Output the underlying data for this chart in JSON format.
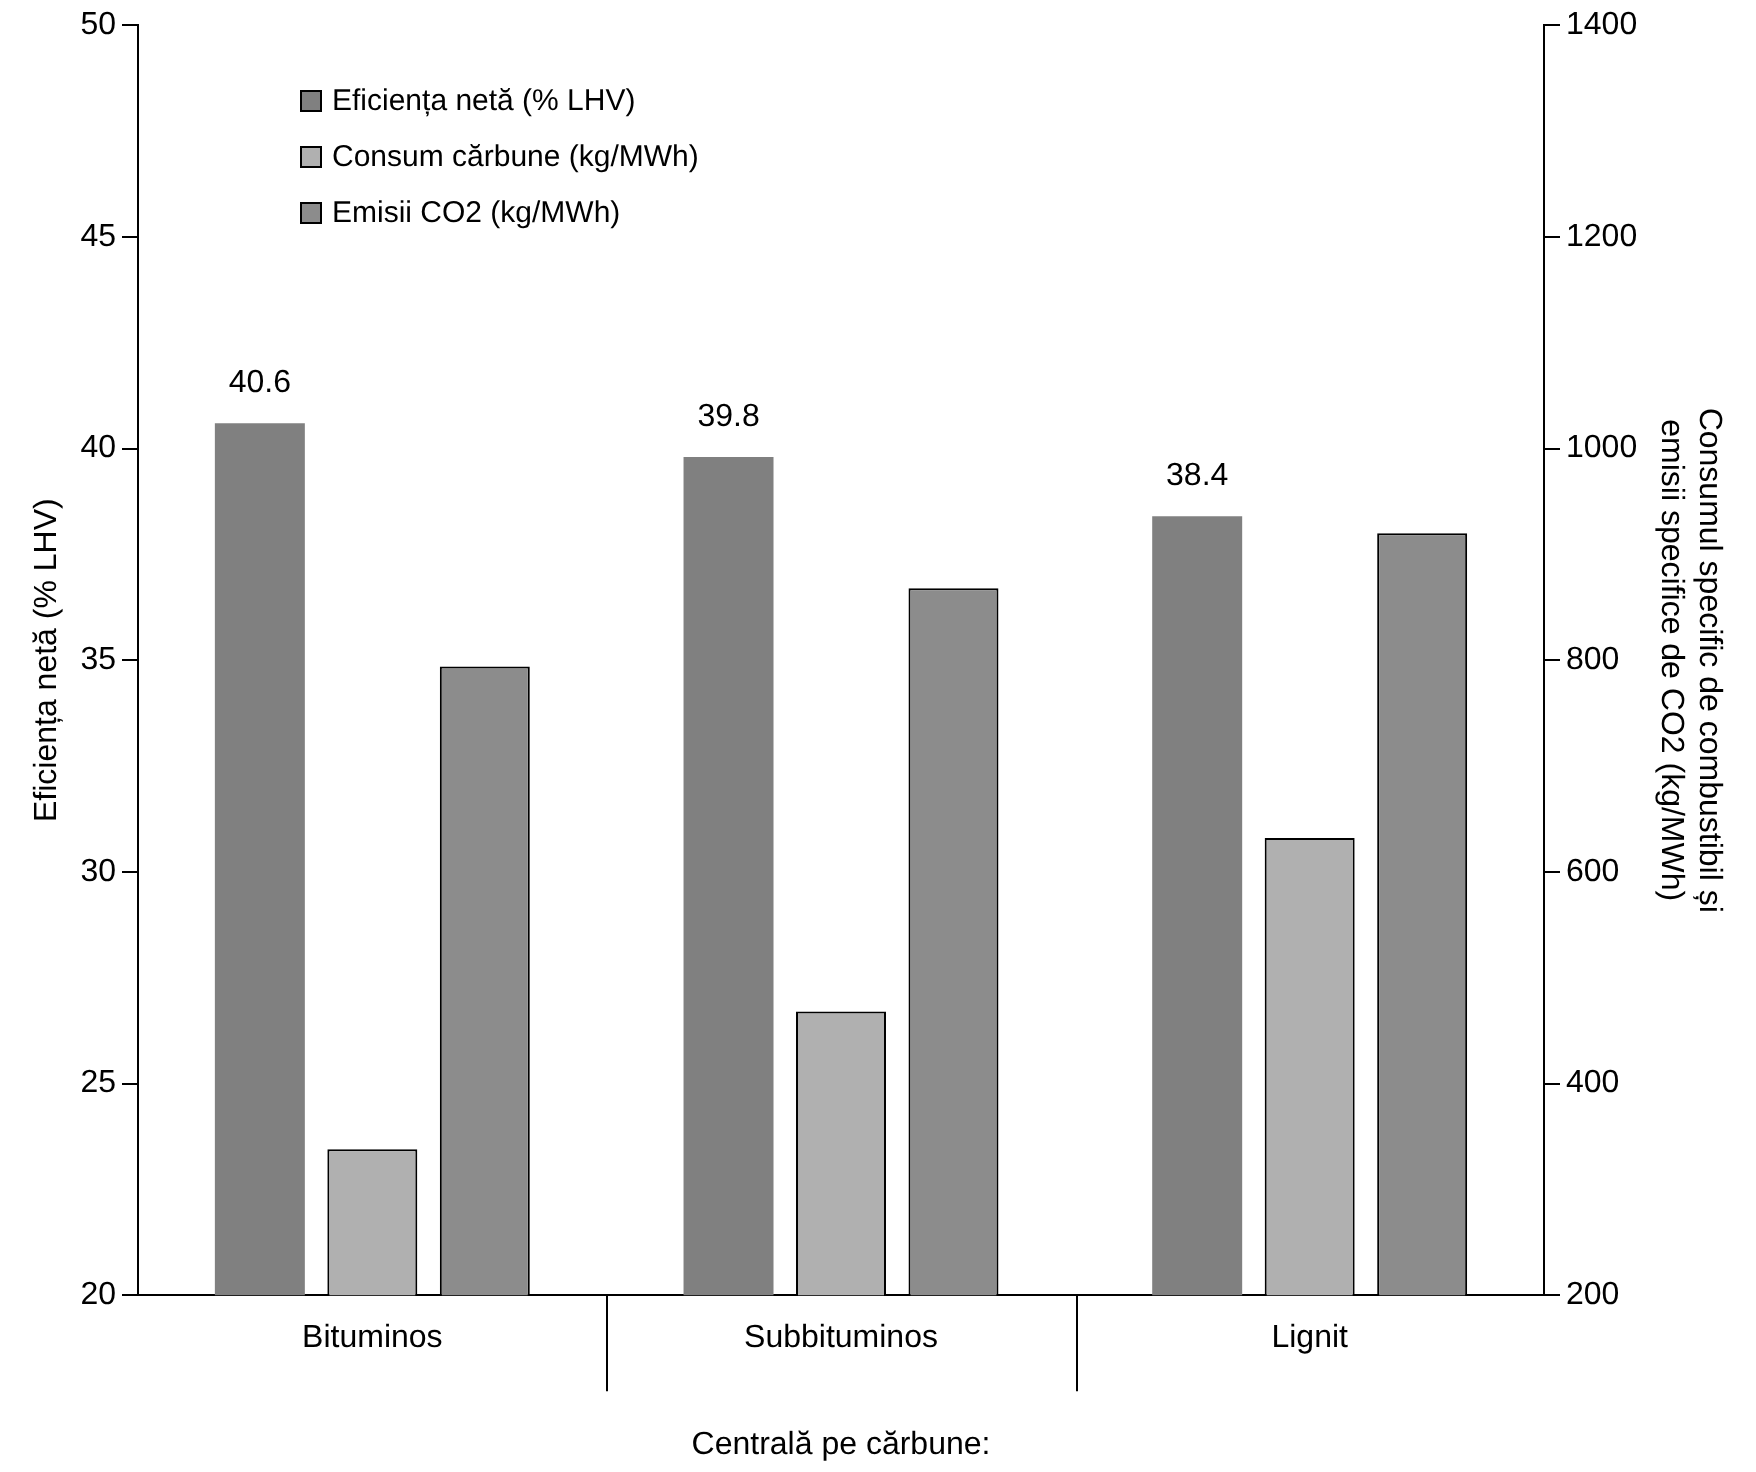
{
  "chart_data": {
    "type": "bar",
    "categories": [
      "Bituminos",
      "Subbituminos",
      "Lignit"
    ],
    "xlabel": "Centrală pe cărbune:",
    "ylabel": "Eficiența netă (% LHV)",
    "y2label": "Consumul specific de combustibil și emisii specifice de CO2 (kg/MWh)",
    "series": [
      {
        "name": "Eficiența netă (% LHV)",
        "color": "#808080",
        "values": [
          40.6,
          39.8,
          38.4
        ],
        "value_labels": [
          "40.6",
          "39.8",
          "38.4"
        ]
      },
      {
        "name": "Consum cărbune (kg/MWh)",
        "color": "#b0b0b0",
        "values": [
          338,
          468,
          632
        ],
        "axis": "y2"
      },
      {
        "name": "Emisii CO2 (kg/MWh)",
        "color": "#8c8c8c",
        "values": [
          794,
          868,
          920
        ],
        "axis": "y2"
      }
    ],
    "ylim": [
      20,
      50
    ],
    "yticks": [
      20,
      25,
      30,
      35,
      40,
      45,
      50
    ],
    "y2lim": [
      200,
      1400
    ],
    "y2ticks": [
      200,
      400,
      600,
      800,
      1000,
      1200,
      1400
    ],
    "grid": false,
    "legend": "top left"
  }
}
